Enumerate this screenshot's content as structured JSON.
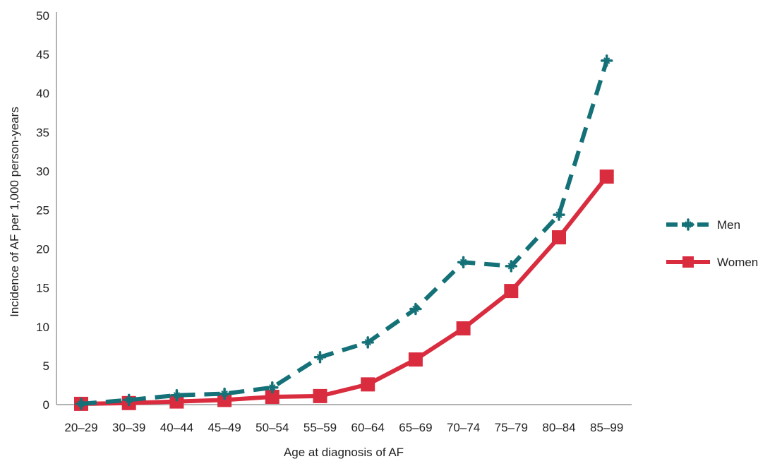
{
  "chart_data": {
    "type": "line",
    "title": "",
    "xlabel": "Age at diagnosis of AF",
    "ylabel": "Incidence of AF per 1,000 person-years",
    "categories": [
      "20–29",
      "30–39",
      "40–44",
      "45–49",
      "50–54",
      "55–59",
      "60–64",
      "65–69",
      "70–74",
      "75–79",
      "80–84",
      "85–99"
    ],
    "ylim": [
      0,
      50
    ],
    "yticks": [
      "0",
      "5",
      "10",
      "15",
      "20",
      "25",
      "30",
      "35",
      "40",
      "45",
      "50"
    ],
    "grid": false,
    "legend_position": "right",
    "series": [
      {
        "name": "Men",
        "color": "#137177",
        "line_style": "dashed",
        "marker": "cross",
        "values": [
          0.1,
          0.6,
          1.2,
          1.4,
          2.2,
          6.1,
          8.0,
          12.3,
          18.3,
          17.8,
          24.4,
          44.2
        ]
      },
      {
        "name": "Women",
        "color": "#d92c3f",
        "line_style": "solid",
        "marker": "square",
        "values": [
          0.1,
          0.2,
          0.4,
          0.6,
          1.0,
          1.1,
          2.6,
          5.8,
          9.8,
          14.6,
          21.5,
          29.3
        ]
      }
    ]
  }
}
